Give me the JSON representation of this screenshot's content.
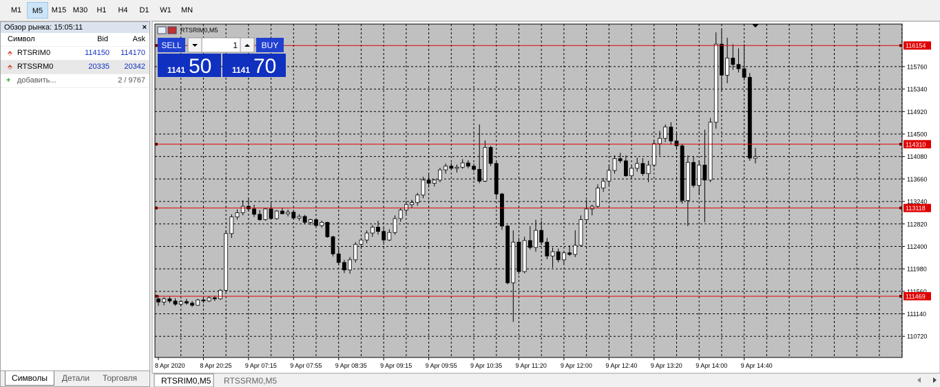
{
  "toolbar": {
    "timeframes": [
      "M1",
      "M5",
      "M15",
      "M30",
      "H1",
      "H4",
      "D1",
      "W1",
      "MN"
    ],
    "active": 1
  },
  "market_watch": {
    "title": "Обзор рынка: 15:05:11",
    "columns": [
      "Символ",
      "Bid",
      "Ask"
    ],
    "rows": [
      [
        "RTSRIM0",
        "114150",
        "114170"
      ],
      [
        "RTSSRM0",
        "20335",
        "20342"
      ]
    ],
    "add": "добавить...",
    "count": "2 / 9767",
    "tabs": [
      "Символы",
      "Детали",
      "Торговля"
    ]
  },
  "trade_panel": {
    "sell": "SELL",
    "buy": "BUY",
    "volume": "1",
    "bid_big": "1141",
    "bid_small": "50",
    "ask_big": "1141",
    "ask_small": "70"
  },
  "chart_tabs": [
    "RTSRIM0,M5",
    "RTSSRM0,M5"
  ],
  "chart_data": {
    "type": "candlestick",
    "title": "RTSRIM0,M5",
    "ylim": [
      110325,
      116555
    ],
    "yticks": [
      115760,
      115340,
      114920,
      114500,
      114080,
      113660,
      113240,
      112820,
      112400,
      111980,
      111560,
      111140,
      110720
    ],
    "levels": [
      116154,
      114310,
      113118,
      111469
    ],
    "level_color": "#e00000",
    "x_labels": [
      "8 Apr 2020",
      "8 Apr 20:25",
      "9 Apr 07:15",
      "9 Apr 07:55",
      "9 Apr 08:35",
      "9 Apr 09:15",
      "9 Apr 09:55",
      "9 Apr 10:35",
      "9 Apr 11:20",
      "9 Apr 12:00",
      "9 Apr 12:40",
      "9 Apr 13:20",
      "9 Apr 14:00",
      "9 Apr 14:40"
    ],
    "grid": true,
    "candles": [
      [
        111420,
        111490,
        111290,
        111360
      ],
      [
        111360,
        111450,
        111300,
        111420
      ],
      [
        111420,
        111460,
        111340,
        111380
      ],
      [
        111380,
        111430,
        111290,
        111320
      ],
      [
        111320,
        111400,
        111280,
        111370
      ],
      [
        111370,
        111420,
        111310,
        111340
      ],
      [
        111340,
        111380,
        111270,
        111300
      ],
      [
        111300,
        111420,
        111290,
        111400
      ],
      [
        111400,
        111450,
        111340,
        111380
      ],
      [
        111380,
        111470,
        111360,
        111440
      ],
      [
        111440,
        111480,
        111380,
        111420
      ],
      [
        111420,
        111600,
        111400,
        111580
      ],
      [
        111580,
        112700,
        111560,
        112640
      ],
      [
        112640,
        113000,
        112560,
        112950
      ],
      [
        112950,
        113090,
        112900,
        113030
      ],
      [
        113030,
        113260,
        112980,
        113150
      ],
      [
        113150,
        113300,
        113050,
        113100
      ],
      [
        113100,
        113180,
        112950,
        113000
      ],
      [
        113000,
        113080,
        112880,
        112900
      ],
      [
        112900,
        113120,
        112880,
        113100
      ],
      [
        113100,
        113200,
        112960,
        112920
      ],
      [
        112920,
        113080,
        112900,
        113060
      ],
      [
        113060,
        113120,
        113000,
        113010
      ],
      [
        113010,
        113090,
        112960,
        113040
      ],
      [
        113040,
        113060,
        112900,
        112930
      ],
      [
        112930,
        113000,
        112880,
        112960
      ],
      [
        112960,
        112990,
        112820,
        112850
      ],
      [
        112850,
        112920,
        112800,
        112900
      ],
      [
        112900,
        112920,
        112760,
        112790
      ],
      [
        112790,
        112880,
        112750,
        112850
      ],
      [
        112850,
        112860,
        112560,
        112580
      ],
      [
        112580,
        112600,
        112210,
        112260
      ],
      [
        112260,
        112380,
        112050,
        112100
      ],
      [
        112100,
        112150,
        111900,
        111960
      ],
      [
        111960,
        112200,
        111890,
        112150
      ],
      [
        112150,
        112480,
        112100,
        112440
      ],
      [
        112440,
        112560,
        112360,
        112520
      ],
      [
        112520,
        112700,
        112460,
        112650
      ],
      [
        112650,
        112800,
        112580,
        112760
      ],
      [
        112760,
        112880,
        112620,
        112680
      ],
      [
        112680,
        112750,
        112460,
        112520
      ],
      [
        112520,
        112720,
        112500,
        112660
      ],
      [
        112660,
        112980,
        112620,
        112920
      ],
      [
        112920,
        113120,
        112860,
        113080
      ],
      [
        113080,
        113250,
        113010,
        113180
      ],
      [
        113180,
        113270,
        113120,
        113220
      ],
      [
        113220,
        113400,
        113160,
        113360
      ],
      [
        113360,
        113700,
        113300,
        113640
      ],
      [
        113640,
        113760,
        113500,
        113580
      ],
      [
        113580,
        113660,
        113520,
        113640
      ],
      [
        113640,
        113870,
        113600,
        113830
      ],
      [
        113830,
        113950,
        113760,
        113900
      ],
      [
        113900,
        113960,
        113820,
        113860
      ],
      [
        113860,
        113930,
        113780,
        113880
      ],
      [
        113880,
        114030,
        113850,
        113960
      ],
      [
        113960,
        114010,
        113860,
        113900
      ],
      [
        113900,
        113950,
        113800,
        113840
      ],
      [
        113840,
        114680,
        113580,
        113620
      ],
      [
        113620,
        114380,
        113600,
        114250
      ],
      [
        114250,
        114280,
        113900,
        113950
      ],
      [
        113950,
        113980,
        113320,
        113380
      ],
      [
        113380,
        113400,
        112710,
        112780
      ],
      [
        112780,
        112800,
        111690,
        111720
      ],
      [
        111720,
        112700,
        110990,
        112480
      ],
      [
        112480,
        112560,
        111880,
        111930
      ],
      [
        111930,
        112580,
        111900,
        112510
      ],
      [
        112510,
        112780,
        112340,
        112380
      ],
      [
        112380,
        112900,
        112300,
        112700
      ],
      [
        112700,
        112880,
        112420,
        112480
      ],
      [
        112480,
        112560,
        112160,
        112220
      ],
      [
        112220,
        112380,
        112000,
        112300
      ],
      [
        112300,
        112360,
        112100,
        112150
      ],
      [
        112150,
        112320,
        112080,
        112280
      ],
      [
        112280,
        112420,
        112220,
        112250
      ],
      [
        112250,
        112700,
        112200,
        112420
      ],
      [
        112420,
        112980,
        112400,
        112900
      ],
      [
        112900,
        113270,
        112820,
        113100
      ],
      [
        113100,
        113180,
        112980,
        113150
      ],
      [
        113150,
        113560,
        113120,
        113490
      ],
      [
        113490,
        113680,
        113420,
        113620
      ],
      [
        113620,
        113900,
        113540,
        113820
      ],
      [
        113820,
        114100,
        113760,
        114040
      ],
      [
        114040,
        114150,
        113960,
        114000
      ],
      [
        114000,
        114100,
        113700,
        113720
      ],
      [
        113720,
        113920,
        113680,
        113860
      ],
      [
        113860,
        114060,
        113800,
        113950
      ],
      [
        113950,
        114050,
        113720,
        113760
      ],
      [
        113760,
        114000,
        113600,
        113920
      ],
      [
        113920,
        114380,
        113880,
        114320
      ],
      [
        114320,
        114560,
        114100,
        114420
      ],
      [
        114420,
        114680,
        114350,
        114630
      ],
      [
        114630,
        114720,
        114300,
        114370
      ],
      [
        114370,
        114500,
        114200,
        114280
      ],
      [
        114280,
        114320,
        113200,
        113260
      ],
      [
        113260,
        114100,
        112780,
        113970
      ],
      [
        113970,
        114080,
        113500,
        113540
      ],
      [
        113540,
        114000,
        113360,
        113920
      ],
      [
        113920,
        114580,
        112850,
        113640
      ],
      [
        113640,
        114800,
        113600,
        114720
      ],
      [
        114720,
        116400,
        114600,
        116180
      ],
      [
        116180,
        116460,
        115300,
        115600
      ],
      [
        115600,
        116300,
        115450,
        115920
      ],
      [
        115920,
        116180,
        115700,
        115800
      ],
      [
        115800,
        116100,
        115650,
        115720
      ],
      [
        115720,
        116180,
        115500,
        115560
      ],
      [
        115560,
        115640,
        114000,
        114050
      ],
      [
        114050,
        114240,
        113950,
        114080
      ]
    ]
  }
}
